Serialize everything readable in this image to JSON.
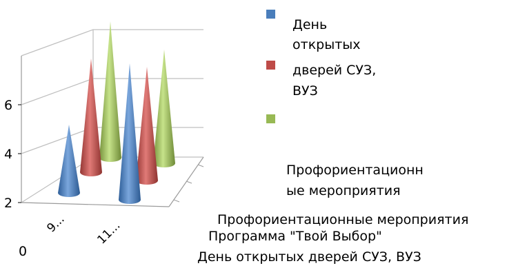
{
  "chart_data": {
    "type": "3d-cone-column",
    "title": "",
    "categories": [
      "9...",
      "11..."
    ],
    "series": [
      {
        "name": "День открытых дверей СУЗ, ВУЗ",
        "values": [
          3,
          6
        ],
        "color": "#4a7ebb"
      },
      {
        "name": "Программа \"Твой Выбор\"",
        "values": [
          5,
          5
        ],
        "color": "#be4b48"
      },
      {
        "name": "Профориентационные мероприятия",
        "values": [
          6,
          5
        ],
        "color": "#98b954"
      }
    ],
    "y_ticks": [
      "0",
      "2",
      "4",
      "6"
    ],
    "ylim": [
      0,
      8
    ],
    "legend": {
      "position": "right",
      "items": [
        {
          "label_lines": [
            "День",
            "открытых",
            "дверей СУЗ,",
            "ВУЗ"
          ],
          "color": "#4a7ebb"
        },
        {
          "label_lines": [],
          "color": "#be4b48"
        },
        {
          "label_lines": [
            "Профориентационн",
            "ые мероприятия"
          ],
          "color": "#98b954"
        }
      ]
    },
    "depth_labels": [
      "Профориентационные мероприятия",
      "Программа \"Твой Выбор\"",
      "День открытых дверей СУЗ, ВУЗ"
    ]
  }
}
